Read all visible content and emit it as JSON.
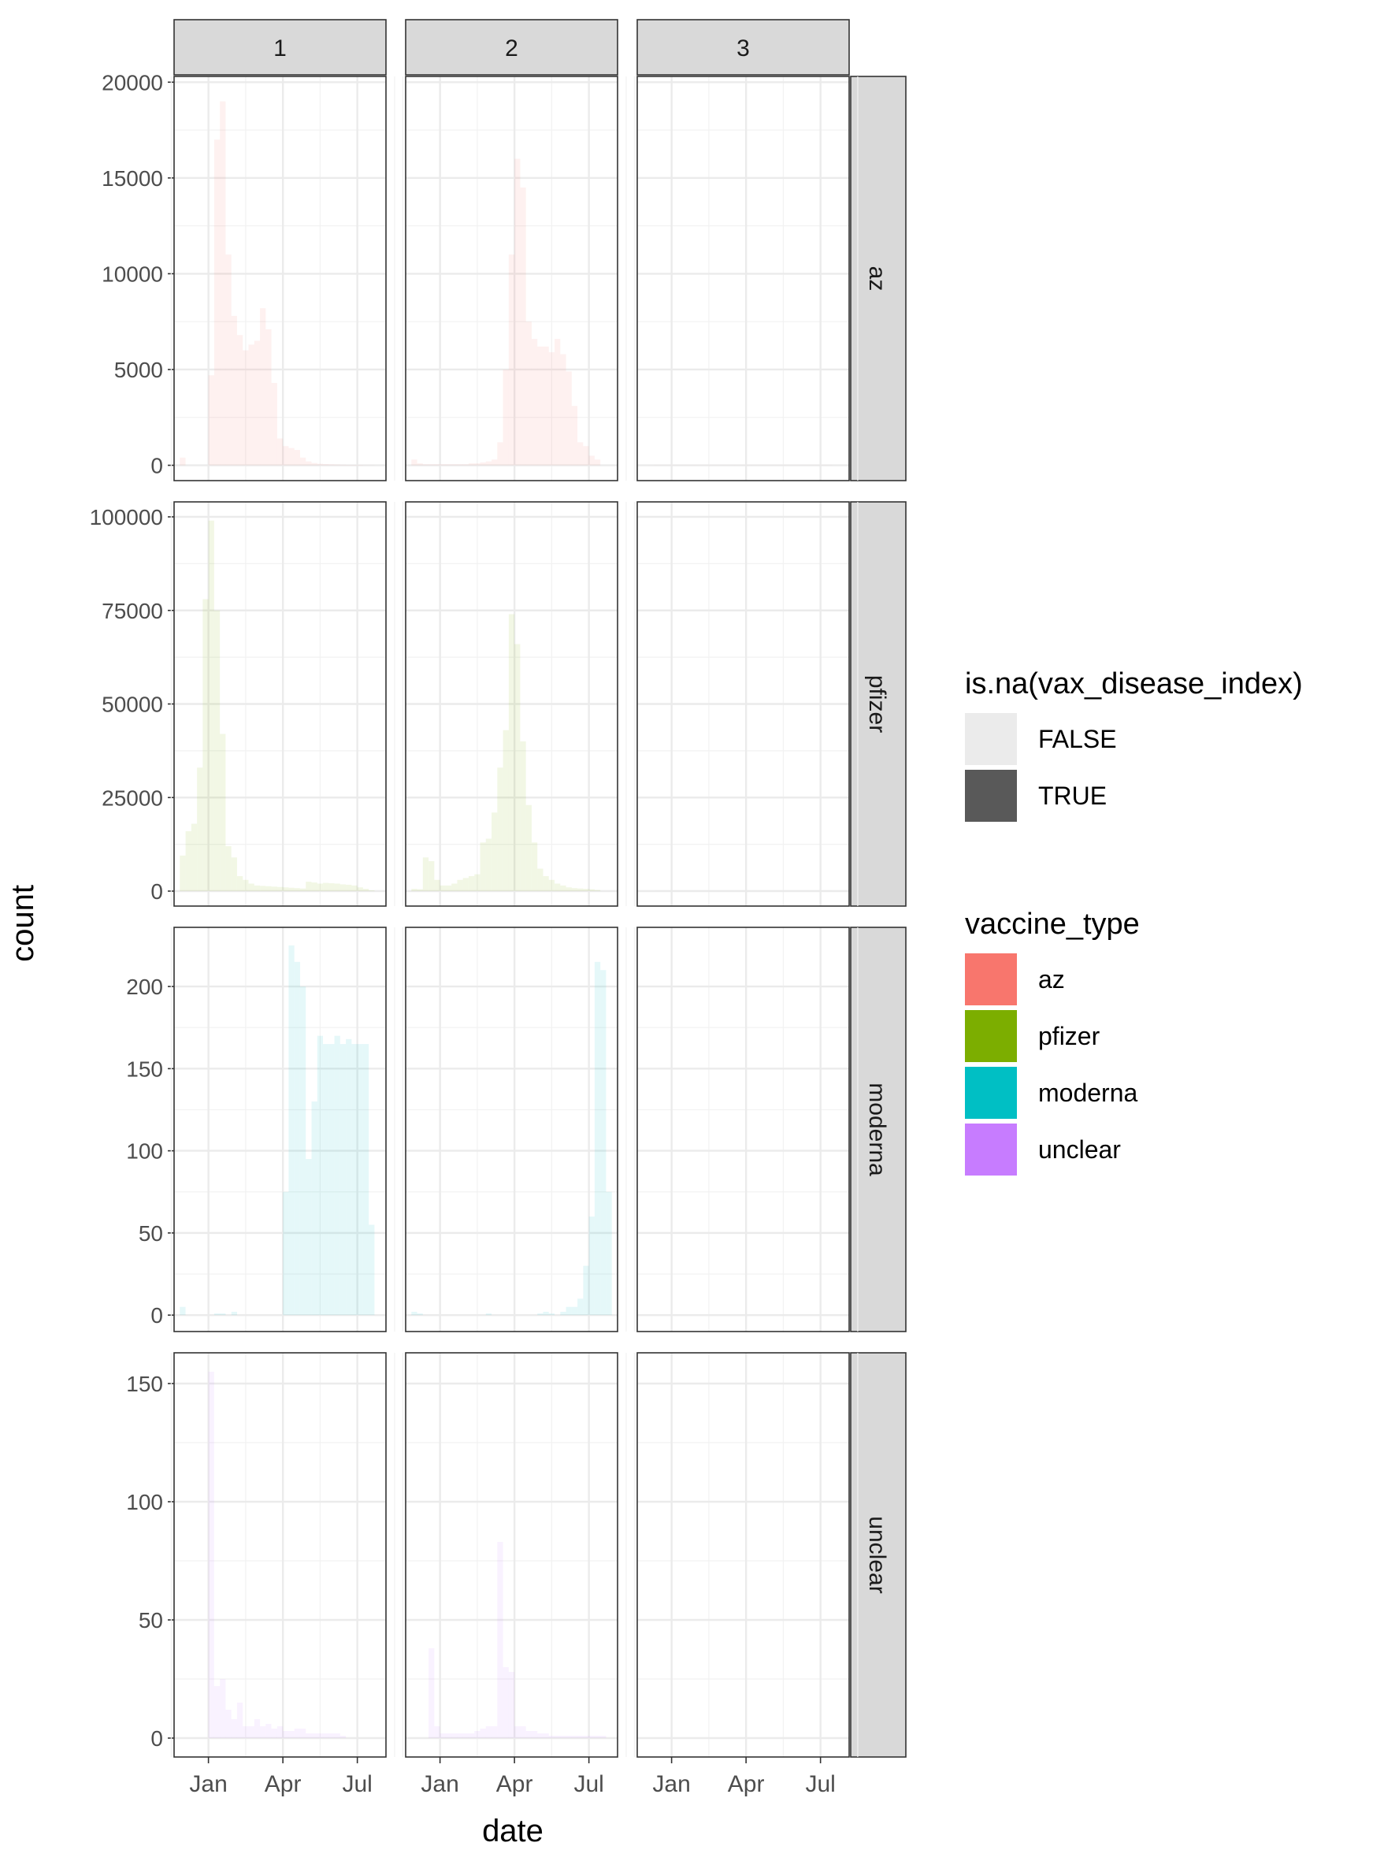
{
  "chart_data": {
    "type": "bar",
    "subtype": "faceted-histogram",
    "xlabel": "date",
    "ylabel": "count",
    "x_tick_labels": [
      "Jan",
      "Apr",
      "Jul"
    ],
    "x_tick_positions_weeks": [
      4,
      17,
      30
    ],
    "x_range_weeks": [
      -2,
      35
    ],
    "facet_columns": [
      "1",
      "2",
      "3"
    ],
    "facet_rows": [
      "az",
      "pfizer",
      "moderna",
      "unclear"
    ],
    "rows": [
      {
        "name": "az",
        "fill": "#F8766D",
        "ylim": [
          -800,
          20300
        ],
        "yticks": [
          0,
          5000,
          10000,
          15000,
          20000
        ],
        "yticklabels": [
          "0",
          "5000",
          "10000",
          "15000",
          "20000"
        ]
      },
      {
        "name": "pfizer",
        "fill": "#7CAE00",
        "ylim": [
          -4000,
          104000
        ],
        "yticks": [
          0,
          25000,
          50000,
          75000,
          100000
        ],
        "yticklabels": [
          "0",
          "25000",
          "50000",
          "75000",
          "100000"
        ]
      },
      {
        "name": "moderna",
        "fill": "#00BFC4",
        "ylim": [
          -10,
          236
        ],
        "yticks": [
          0,
          50,
          100,
          150,
          200
        ],
        "yticklabels": [
          "0",
          "50",
          "100",
          "150",
          "200"
        ]
      },
      {
        "name": "unclear",
        "fill": "#C77CFF",
        "ylim": [
          -8,
          163
        ],
        "yticks": [
          0,
          50,
          100,
          150
        ],
        "yticklabels": [
          "0",
          "50",
          "100",
          "150"
        ]
      }
    ],
    "panels": [
      {
        "row": "az",
        "col": "1",
        "start_week": -1,
        "values": [
          400,
          0,
          0,
          0,
          0,
          4700,
          17000,
          19000,
          11000,
          7800,
          6800,
          6000,
          6300,
          6500,
          8200,
          7100,
          4300,
          1400,
          1000,
          900,
          800,
          400,
          200,
          120,
          80,
          60,
          50,
          40,
          30,
          20,
          20,
          20,
          10,
          10
        ]
      },
      {
        "row": "az",
        "col": "2",
        "start_week": -1,
        "values": [
          300,
          100,
          50,
          50,
          50,
          50,
          50,
          50,
          50,
          50,
          100,
          100,
          150,
          200,
          300,
          1200,
          5000,
          11000,
          16000,
          14500,
          7500,
          6600,
          6200,
          6200,
          5900,
          6600,
          5800,
          4900,
          3100,
          1200,
          1000,
          500,
          300
        ]
      },
      {
        "row": "az",
        "col": "3",
        "start_week": -1,
        "values": [
          0,
          5,
          10,
          10,
          10,
          10,
          10,
          10,
          10,
          10,
          10,
          10,
          10,
          10,
          10,
          10,
          10,
          10,
          10,
          10,
          10,
          10,
          10,
          10,
          10,
          10,
          10,
          10,
          10,
          10,
          10,
          10,
          10
        ]
      },
      {
        "row": "pfizer",
        "col": "1",
        "start_week": -1,
        "values": [
          9500,
          16000,
          18000,
          33000,
          78000,
          99000,
          75000,
          42000,
          12000,
          9000,
          4000,
          3000,
          2000,
          1500,
          1400,
          1300,
          1200,
          1100,
          1000,
          900,
          800,
          700,
          2500,
          2300,
          2000,
          2200,
          2100,
          2000,
          1800,
          1700,
          1500,
          1000,
          600,
          200
        ]
      },
      {
        "row": "pfizer",
        "col": "2",
        "start_week": -1,
        "values": [
          600,
          500,
          9000,
          8000,
          3000,
          1500,
          1500,
          2000,
          3000,
          3500,
          4000,
          4500,
          13000,
          14000,
          21000,
          33000,
          43000,
          74000,
          66000,
          40000,
          23000,
          13000,
          6000,
          4000,
          3000,
          2000,
          1500,
          1000,
          800,
          700,
          600,
          500,
          300
        ]
      },
      {
        "row": "pfizer",
        "col": "3",
        "start_week": -1,
        "values": [
          0,
          0,
          10,
          10,
          10,
          10,
          10,
          10,
          10,
          10,
          10,
          10,
          10,
          10,
          10,
          10,
          10,
          10,
          10,
          10,
          10,
          10,
          10,
          10,
          10,
          10,
          10,
          10,
          10,
          10,
          10,
          10,
          10
        ]
      },
      {
        "row": "moderna",
        "col": "1",
        "start_week": -1,
        "values": [
          5,
          0,
          0,
          0,
          0,
          0,
          1,
          1,
          0,
          2,
          0,
          0,
          0,
          0,
          0,
          0,
          0,
          0,
          75,
          225,
          215,
          200,
          95,
          130,
          170,
          165,
          165,
          170,
          165,
          168,
          165,
          165,
          165,
          55
        ]
      },
      {
        "row": "moderna",
        "col": "2",
        "start_week": -1,
        "values": [
          2,
          1,
          0,
          0,
          0,
          0,
          0,
          0,
          0,
          0,
          0,
          0,
          0,
          1,
          0,
          0,
          0,
          0,
          0,
          0,
          0,
          0,
          1,
          2,
          1,
          0,
          2,
          5,
          5,
          10,
          30,
          60,
          215,
          210,
          75
        ]
      },
      {
        "row": "moderna",
        "col": "3",
        "start_week": -1,
        "values": [
          0,
          0,
          0,
          0,
          0,
          0,
          0,
          0,
          0,
          0,
          0,
          0,
          0,
          0,
          0,
          0,
          0,
          0,
          0,
          0,
          0,
          0,
          0,
          0,
          0,
          0,
          0,
          0,
          0,
          0,
          0,
          0,
          0
        ]
      },
      {
        "row": "unclear",
        "col": "1",
        "start_week": 4,
        "values": [
          155,
          22,
          25,
          12,
          8,
          15,
          5,
          5,
          8,
          5,
          6,
          4,
          5,
          3,
          3,
          4,
          4,
          2,
          2,
          2,
          2,
          2,
          2,
          1
        ]
      },
      {
        "row": "unclear",
        "col": "2",
        "start_week": 2,
        "values": [
          38,
          5,
          2,
          2,
          2,
          2,
          2,
          2,
          3,
          4,
          5,
          5,
          83,
          30,
          28,
          5,
          5,
          3,
          3,
          2,
          2,
          1,
          1,
          1,
          1,
          1,
          1,
          1,
          1,
          1,
          1
        ]
      },
      {
        "row": "unclear",
        "col": "3",
        "start_week": -1,
        "values": [
          0,
          0,
          0,
          0,
          0,
          0,
          0,
          0,
          0,
          0,
          0,
          0,
          0,
          0,
          0,
          0,
          0,
          0,
          0,
          0,
          0,
          0,
          0,
          0,
          0,
          0,
          0,
          0,
          0,
          0,
          0,
          0,
          0
        ]
      }
    ],
    "legends": [
      {
        "title": "is.na(vax_disease_index)",
        "items": [
          {
            "label": "FALSE",
            "color": "#EBEBEB"
          },
          {
            "label": "TRUE",
            "color": "#595959"
          }
        ]
      },
      {
        "title": "vaccine_type",
        "items": [
          {
            "label": "az",
            "color": "#F8766D"
          },
          {
            "label": "pfizer",
            "color": "#7CAE00"
          },
          {
            "label": "moderna",
            "color": "#00BFC4"
          },
          {
            "label": "unclear",
            "color": "#C77CFF"
          }
        ]
      }
    ],
    "legend_position": "right",
    "bar_alpha": 0.1,
    "grid": true
  }
}
